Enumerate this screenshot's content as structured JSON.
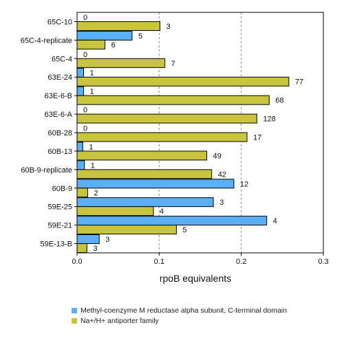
{
  "chart_data": {
    "type": "bar",
    "orientation": "horizontal",
    "categories": [
      "65C-10",
      "65C-4-replicate",
      "65C-4",
      "63E-24",
      "63E-6-B",
      "63E-6-A",
      "60B-28",
      "60B-13",
      "60B-9-replicate",
      "60B-9",
      "59E-25",
      "59E-21",
      "59E-13-B"
    ],
    "series": [
      {
        "name": "Methyl-coenzyme M reductase alpha subunit, C-terminal domain",
        "color": "#5aaff5",
        "values": [
          0,
          0.067,
          0,
          0.008,
          0.008,
          0,
          0,
          0.007,
          0.009,
          0.191,
          0.166,
          0.231,
          0.027
        ],
        "labels": [
          "0",
          "5",
          "0",
          "1",
          "1",
          "0",
          "0",
          "1",
          "1",
          "12",
          "3",
          "4",
          "3"
        ]
      },
      {
        "name": "Na+/H+ antiporter family",
        "color": "#c9c43d",
        "values": [
          0.101,
          0.034,
          0.107,
          0.258,
          0.234,
          0.219,
          0.207,
          0.158,
          0.164,
          0.013,
          0.093,
          0.121,
          0.012
        ],
        "labels": [
          "3",
          "6",
          "7",
          "77",
          "68",
          "128",
          "17",
          "49",
          "42",
          "2",
          "4",
          "5",
          "3"
        ]
      }
    ],
    "xlabel": "rpoB equivalents",
    "xlim": [
      0,
      0.3
    ],
    "xticks": [
      "0.0",
      "0.1",
      "0.2",
      "0.3"
    ],
    "grid": true,
    "legend_position": "bottom"
  }
}
